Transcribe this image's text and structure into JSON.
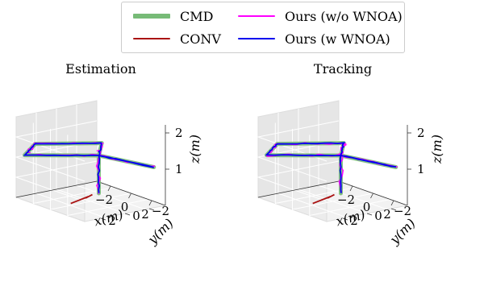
{
  "chart_data": [
    {
      "type": "line",
      "projection": "3d",
      "title": "Estimation",
      "xlabel": "x(m)",
      "ylabel": "y(m)",
      "zlabel": "z(m)",
      "xticks": [
        "−2",
        "0",
        "2"
      ],
      "yticks": [
        "−2",
        "0",
        "2"
      ],
      "zticks": [
        "1",
        "2"
      ],
      "xlim": [
        -3,
        3
      ],
      "ylim": [
        -3,
        3
      ],
      "zlim": [
        0,
        2.2
      ],
      "grid": true,
      "legend": "top-center",
      "series": [
        {
          "name": "CMD",
          "color": "#77bb77"
        },
        {
          "name": "CONV",
          "color": "#aa1111"
        },
        {
          "name": "Ours (w/o WNOA)",
          "color": "#ff00ff"
        },
        {
          "name": "Ours (w WNOA)",
          "color": "#0000ee"
        }
      ]
    },
    {
      "type": "line",
      "projection": "3d",
      "title": "Tracking",
      "xlabel": "x(m)",
      "ylabel": "y(m)",
      "zlabel": "z(m)",
      "xticks": [
        "−2",
        "0",
        "2"
      ],
      "yticks": [
        "−2",
        "0",
        "2"
      ],
      "zticks": [
        "1",
        "2"
      ],
      "xlim": [
        -3,
        3
      ],
      "ylim": [
        -3,
        3
      ],
      "zlim": [
        0,
        2.2
      ],
      "grid": true,
      "legend": "top-center",
      "series": [
        {
          "name": "CMD",
          "color": "#77bb77"
        },
        {
          "name": "CONV",
          "color": "#aa1111"
        },
        {
          "name": "Ours (w/o WNOA)",
          "color": "#ff00ff"
        },
        {
          "name": "Ours (w WNOA)",
          "color": "#0000ee"
        }
      ]
    }
  ]
}
